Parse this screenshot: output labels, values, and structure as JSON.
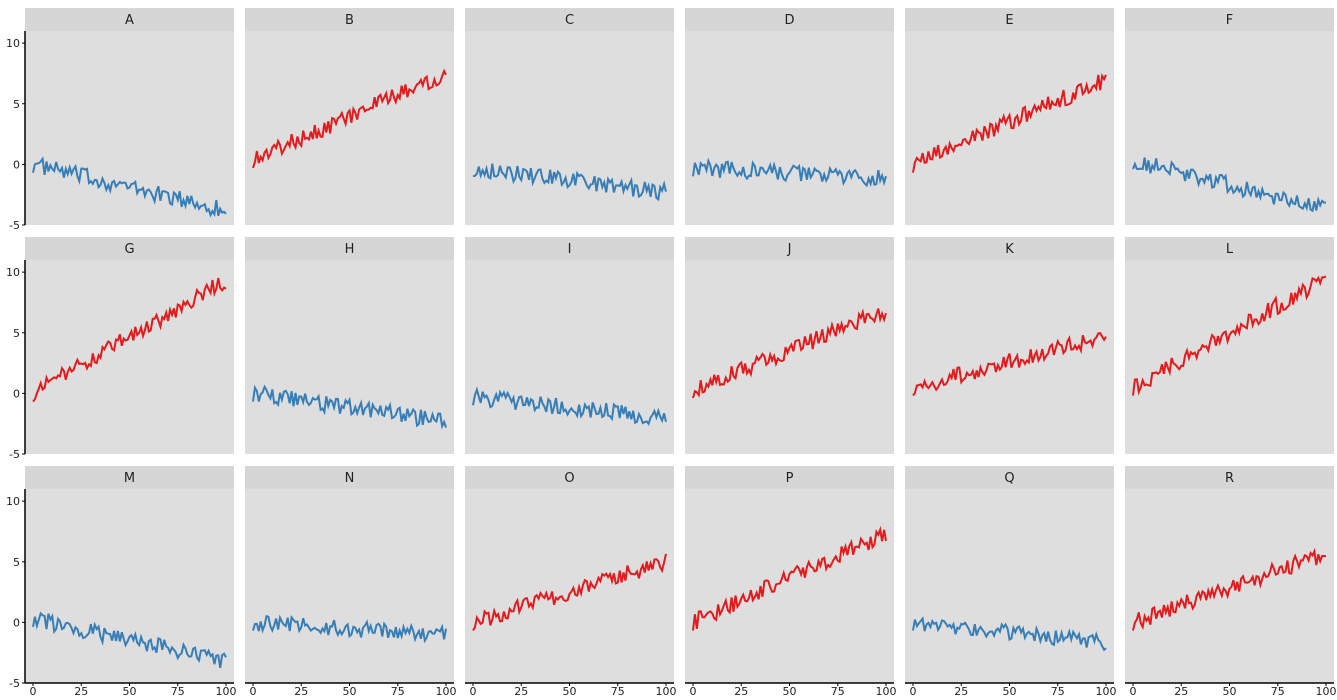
{
  "chart_data": {
    "type": "line",
    "layout": "small-multiples 3 rows x 6 columns, shared axes",
    "ylim": [
      -5,
      11
    ],
    "xlim": [
      0,
      100
    ],
    "y_ticks": [
      -5,
      0,
      5,
      10
    ],
    "x_ticks": [
      0,
      25,
      50,
      75,
      100
    ],
    "colors": {
      "increasing": "#e41a1c",
      "decreasing": "#377eb8",
      "panel_bg": "#dedede",
      "strip_bg": "#d6d6d6"
    },
    "panels": [
      {
        "label": "A",
        "trend": "decreasing",
        "start": 0.0,
        "end": -3.8
      },
      {
        "label": "B",
        "trend": "increasing",
        "start": 0.4,
        "end": 7.5
      },
      {
        "label": "C",
        "trend": "decreasing",
        "start": -0.3,
        "end": -2.3
      },
      {
        "label": "D",
        "trend": "decreasing",
        "start": -0.3,
        "end": -1.2
      },
      {
        "label": "E",
        "trend": "increasing",
        "start": 0.0,
        "end": 7.0
      },
      {
        "label": "F",
        "trend": "decreasing",
        "start": 0.3,
        "end": -3.7
      },
      {
        "label": "G",
        "trend": "increasing",
        "start": 0.0,
        "end": 9.3
      },
      {
        "label": "H",
        "trend": "decreasing",
        "start": 0.0,
        "end": -2.3
      },
      {
        "label": "I",
        "trend": "decreasing",
        "start": -0.3,
        "end": -2.0
      },
      {
        "label": "J",
        "trend": "increasing",
        "start": 0.3,
        "end": 6.8
      },
      {
        "label": "K",
        "trend": "increasing",
        "start": 0.5,
        "end": 4.7
      },
      {
        "label": "L",
        "trend": "increasing",
        "start": 0.5,
        "end": 9.5
      },
      {
        "label": "M",
        "trend": "decreasing",
        "start": 0.3,
        "end": -3.2
      },
      {
        "label": "N",
        "trend": "decreasing",
        "start": 0.0,
        "end": -1.0
      },
      {
        "label": "O",
        "trend": "increasing",
        "start": 0.0,
        "end": 5.0
      },
      {
        "label": "P",
        "trend": "increasing",
        "start": 0.0,
        "end": 7.3
      },
      {
        "label": "Q",
        "trend": "decreasing",
        "start": 0.0,
        "end": -1.7
      },
      {
        "label": "R",
        "trend": "increasing",
        "start": 0.0,
        "end": 5.7
      }
    ]
  }
}
